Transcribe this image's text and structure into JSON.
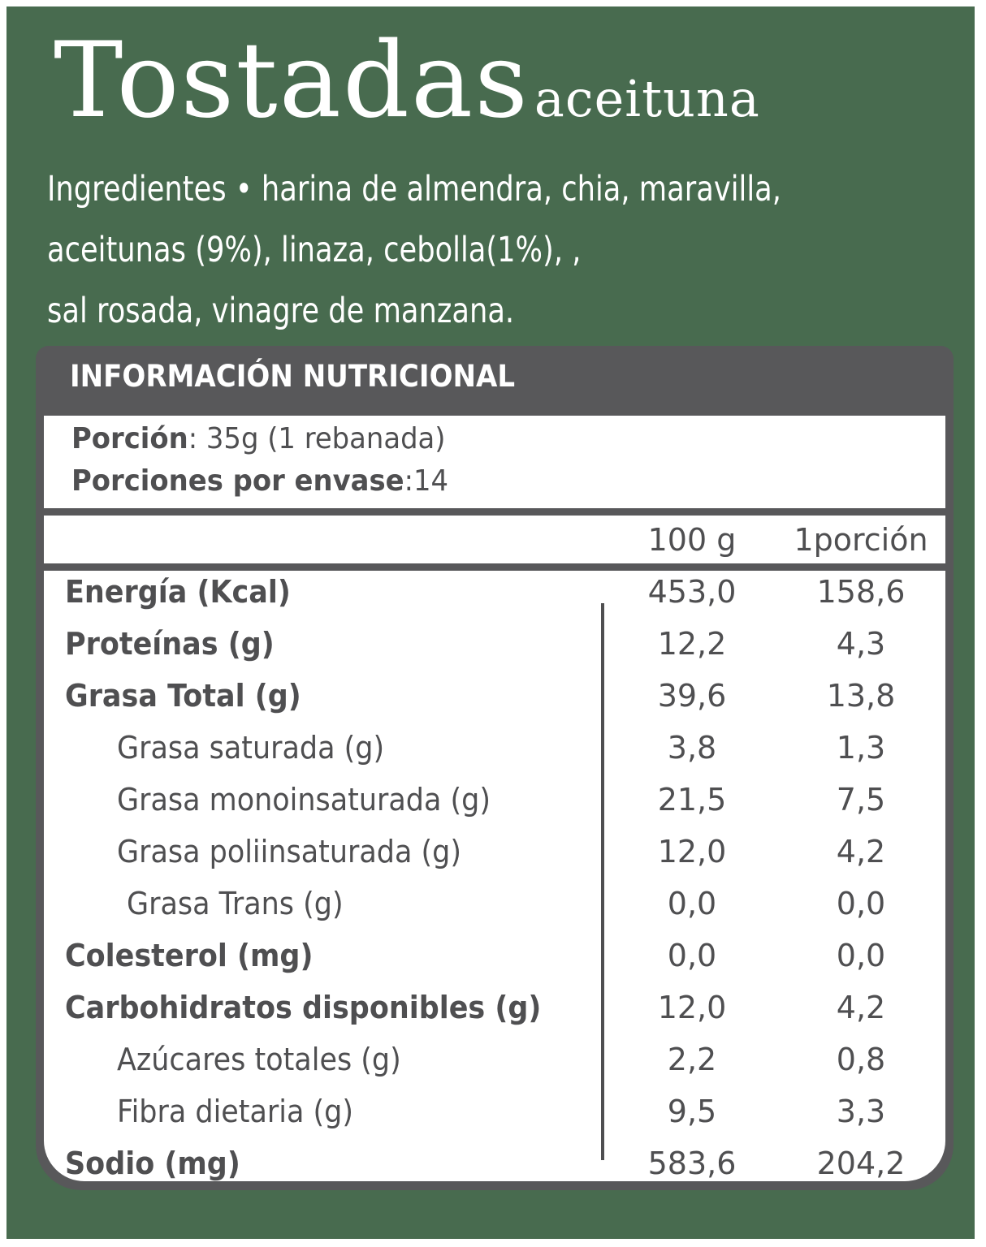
{
  "product": {
    "name": "Tostadas",
    "variant": "aceituna"
  },
  "ingredients": {
    "lines": [
      "Ingredientes • harina de almendra, chia, maravilla,",
      "aceitunas (9%), linaza, cebolla(1%), ,",
      "sal rosada, vinagre de manzana."
    ]
  },
  "nutrition": {
    "title": "INFORMACIÓN NUTRICIONAL",
    "portion_label": "Porción",
    "portion_value": ": 35g (1 rebanada)",
    "servings_label": "Porciones por envase",
    "servings_value": ":14",
    "columns": [
      "100 g",
      "1porción"
    ],
    "rows": [
      {
        "name": "Energía (Kcal)",
        "per100": "453,0",
        "perPortion": "158,6"
      },
      {
        "name": "Proteínas (g)",
        "per100": "12,2",
        "perPortion": "4,3"
      },
      {
        "name": "Grasa Total (g)",
        "per100": "39,6",
        "perPortion": "13,8"
      },
      {
        "name": "Grasa saturada (g)",
        "per100": "3,8",
        "perPortion": "1,3"
      },
      {
        "name": "Grasa monoinsaturada (g)",
        "per100": "21,5",
        "perPortion": "7,5"
      },
      {
        "name": "Grasa poliinsaturada (g)",
        "per100": "12,0",
        "perPortion": "4,2"
      },
      {
        "name": "Grasa Trans (g)",
        "per100": "0,0",
        "perPortion": "0,0"
      },
      {
        "name": "Colesterol (mg)",
        "per100": "0,0",
        "perPortion": "0,0"
      },
      {
        "name": "Carbohidratos disponibles (g)",
        "per100": "12,0",
        "perPortion": "4,2"
      },
      {
        "name": "Azúcares totales (g)",
        "per100": "2,2",
        "perPortion": "0,8"
      },
      {
        "name": "Fibra dietaria (g)",
        "per100": "9,5",
        "perPortion": "3,3"
      },
      {
        "name": "Sodio (mg)",
        "per100": "583,6",
        "perPortion": "204,2"
      }
    ]
  },
  "colors": {
    "background_green": "#486b4f",
    "panel_gray": "#58585a",
    "text_gray": "#4f4f51"
  }
}
